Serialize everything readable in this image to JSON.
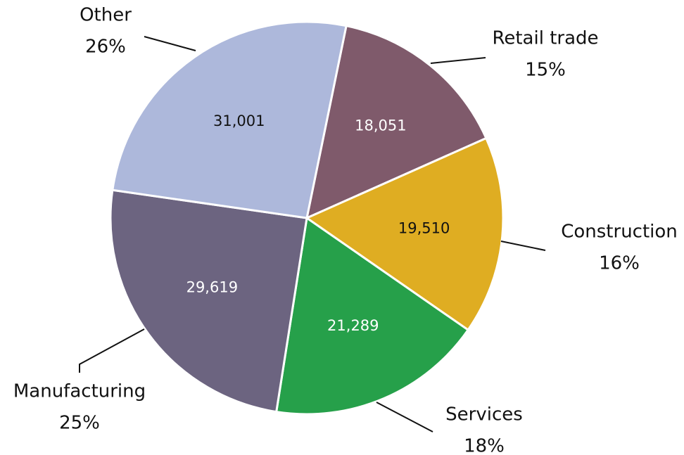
{
  "chart_data": {
    "type": "pie",
    "categories": [
      "Retail trade",
      "Construction",
      "Services",
      "Manufacturing",
      "Other"
    ],
    "values": [
      18051,
      19510,
      21289,
      29619,
      31001
    ],
    "value_labels": [
      "18,051",
      "19,510",
      "21,289",
      "29,619",
      "31,001"
    ],
    "percentages": [
      15,
      16,
      18,
      25,
      26
    ],
    "percentage_labels": [
      "15%",
      "16%",
      "18%",
      "25%",
      "26%"
    ],
    "colors": [
      "#7f5a6b",
      "#dfad22",
      "#26a04a",
      "#6c6480",
      "#adb8db"
    ]
  }
}
